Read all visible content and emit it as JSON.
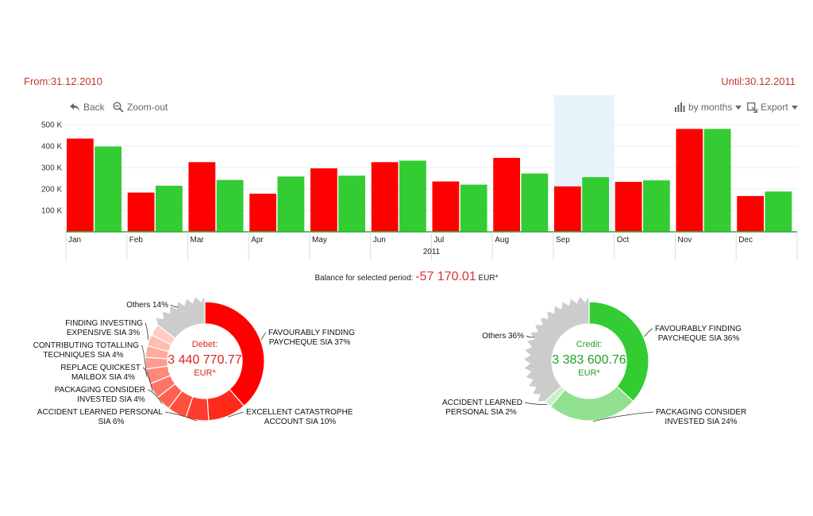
{
  "period": {
    "from": "From:31.12.2010",
    "until": "Until:30.12.2011"
  },
  "toolbar": {
    "back_label": "Back",
    "zoom_label": "Zoom-out",
    "group_label": "by months",
    "export_label": "Export"
  },
  "colors": {
    "debit": "#ff0000",
    "credit": "#33cc33",
    "selected_band": "#e6f3fb",
    "period_text": "#c0392b"
  },
  "chart_data": [
    {
      "type": "bar",
      "categories": [
        "Jan",
        "Feb",
        "Mar",
        "Apr",
        "May",
        "Jun",
        "Jul",
        "Aug",
        "Sep",
        "Oct",
        "Nov",
        "Dec"
      ],
      "xlabel": "2011",
      "ylabel": "",
      "ylim": [
        0,
        500000
      ],
      "yticks": [
        100000,
        200000,
        300000,
        400000,
        500000
      ],
      "ytick_labels": [
        "100 K",
        "200 K",
        "300 K",
        "400 K",
        "500 K"
      ],
      "selected_category": "Sep",
      "series": [
        {
          "values": [
            435000,
            183000,
            325000,
            178000,
            296000,
            325000,
            235000,
            345000,
            212000,
            233000,
            480000,
            167000
          ]
        },
        {
          "values": [
            398000,
            215000,
            242000,
            258000,
            262000,
            332000,
            220000,
            272000,
            255000,
            240000,
            480000,
            188000
          ]
        }
      ]
    },
    {
      "type": "pie",
      "center_title": "Debet:",
      "center_value": "3 440 770.77",
      "center_unit": "EUR*",
      "slices": [
        {
          "label": "FAVOURABLY FINDING PAYCHEQUE SIA 37%",
          "line1": "FAVOURABLY FINDING",
          "line2": "PAYCHEQUE SIA 37%",
          "value": 37,
          "color": "#ff0000"
        },
        {
          "label": "EXCELLENT CATASTROPHE ACCOUNT SIA 10%",
          "line1": "EXCELLENT CATASTROPHE",
          "line2": "ACCOUNT SIA 10%",
          "value": 10,
          "color": "#ff2a1a"
        },
        {
          "label": "ACCIDENT LEARNED PERSONAL SIA 6%",
          "line1": "ACCIDENT LEARNED PERSONAL",
          "line2": "SIA 6%",
          "value": 6,
          "color": "#ff3d2e"
        },
        {
          "label": "",
          "value": 5,
          "color": "#ff5040"
        },
        {
          "label": "PACKAGING CONSIDER INVESTED SIA 4%",
          "line1": "PACKAGING CONSIDER",
          "line2": "INVESTED SIA 4%",
          "value": 4,
          "color": "#ff6252"
        },
        {
          "label": "REPLACE QUICKEST MAILBOX SIA 4%",
          "line1": "REPLACE QUICKEST",
          "line2": "MAILBOX SIA 4%",
          "value": 4,
          "color": "#ff7565"
        },
        {
          "label": "CONTRIBUTING TOTALLING TECHNIQUES SIA 4%",
          "line1": "CONTRIBUTING TOTALLING",
          "line2": "TECHNIQUES SIA 4%",
          "value": 4,
          "color": "#ff8878"
        },
        {
          "label": "",
          "value": 3,
          "color": "#ff9a8c"
        },
        {
          "label": "",
          "value": 3,
          "color": "#ffab9e"
        },
        {
          "label": "FINDING INVESTING EXPENSIVE SIA 3%",
          "line1": "FINDING INVESTING",
          "line2": "EXPENSIVE SIA 3%",
          "value": 3,
          "color": "#ffbcb0"
        },
        {
          "label": "",
          "value": 3,
          "color": "#ffccc2"
        },
        {
          "label": "Others 14%",
          "line1": "Others 14%",
          "line2": "",
          "value": 14,
          "color": "#cccccc",
          "jagged": true
        }
      ]
    },
    {
      "type": "pie",
      "center_title": "Credit:",
      "center_value": "3 383 600.76",
      "center_unit": "EUR*",
      "slices": [
        {
          "label": "FAVOURABLY FINDING PAYCHEQUE SIA 36%",
          "line1": "FAVOURABLY FINDING",
          "line2": "PAYCHEQUE SIA 36%",
          "value": 36,
          "color": "#33cc33"
        },
        {
          "label": "PACKAGING CONSIDER INVESTED SIA 24%",
          "line1": "PACKAGING CONSIDER",
          "line2": "INVESTED SIA 24%",
          "value": 24,
          "color": "#90e090"
        },
        {
          "label": "ACCIDENT LEARNED PERSONAL SIA 2%",
          "line1": "ACCIDENT LEARNED",
          "line2": "PERSONAL SIA 2%",
          "value": 2,
          "color": "#c9f0c9"
        },
        {
          "label": "Others 36%",
          "line1": "Others 36%",
          "line2": "",
          "value": 36,
          "color": "#cccccc",
          "jagged": true
        }
      ]
    }
  ],
  "balance": {
    "label": "Balance for selected period:",
    "value": "-57 170.01",
    "unit": "EUR*"
  }
}
